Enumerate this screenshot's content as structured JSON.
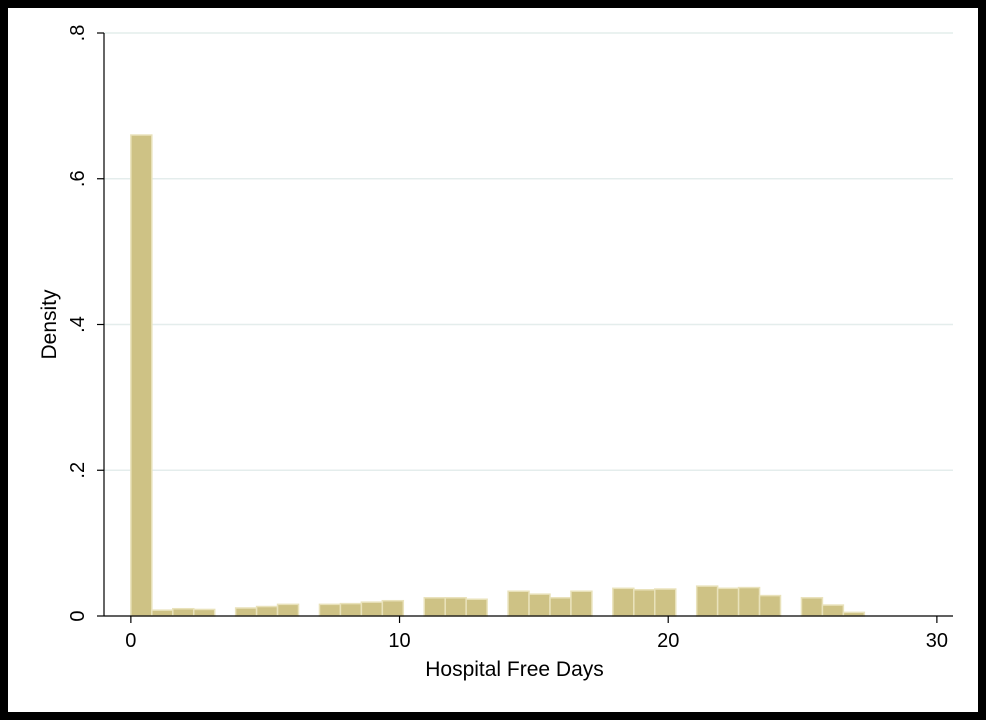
{
  "chart_data": {
    "type": "bar",
    "xlabel": "Hospital Free Days",
    "ylabel": "Density",
    "xlim": [
      -1,
      30.6
    ],
    "ylim": [
      0,
      0.8
    ],
    "x_ticks": [
      0,
      10,
      20,
      30
    ],
    "x_tick_labels": [
      "0",
      "10",
      "20",
      "30"
    ],
    "y_ticks": [
      0,
      0.2,
      0.4,
      0.6,
      0.8
    ],
    "y_tick_labels": [
      "0",
      ".2",
      ".4",
      ".6",
      ".8"
    ],
    "grid": true,
    "bin_width": 0.78,
    "bins": [
      {
        "x": 0.0,
        "value": 0.66
      },
      {
        "x": 0.78,
        "value": 0.008
      },
      {
        "x": 1.56,
        "value": 0.01
      },
      {
        "x": 2.34,
        "value": 0.009
      },
      {
        "x": 3.9,
        "value": 0.011
      },
      {
        "x": 4.68,
        "value": 0.013
      },
      {
        "x": 5.46,
        "value": 0.016
      },
      {
        "x": 7.02,
        "value": 0.016
      },
      {
        "x": 7.8,
        "value": 0.017
      },
      {
        "x": 8.58,
        "value": 0.019
      },
      {
        "x": 9.36,
        "value": 0.021
      },
      {
        "x": 10.92,
        "value": 0.025
      },
      {
        "x": 11.7,
        "value": 0.025
      },
      {
        "x": 12.48,
        "value": 0.023
      },
      {
        "x": 14.04,
        "value": 0.034
      },
      {
        "x": 14.82,
        "value": 0.03
      },
      {
        "x": 15.6,
        "value": 0.025
      },
      {
        "x": 16.38,
        "value": 0.034
      },
      {
        "x": 17.94,
        "value": 0.038
      },
      {
        "x": 18.72,
        "value": 0.036
      },
      {
        "x": 19.5,
        "value": 0.037
      },
      {
        "x": 21.06,
        "value": 0.041
      },
      {
        "x": 21.84,
        "value": 0.038
      },
      {
        "x": 22.62,
        "value": 0.039
      },
      {
        "x": 23.4,
        "value": 0.028
      },
      {
        "x": 24.96,
        "value": 0.025
      },
      {
        "x": 25.74,
        "value": 0.015
      },
      {
        "x": 26.52,
        "value": 0.005
      }
    ],
    "colors": {
      "bar_fill": "#CEC285",
      "bar_stroke": "#E9E2BB",
      "grid": "#E4EDEC",
      "axis": "#000000",
      "frame_background": "#000000",
      "plot_background": "#FFFFFF"
    }
  }
}
